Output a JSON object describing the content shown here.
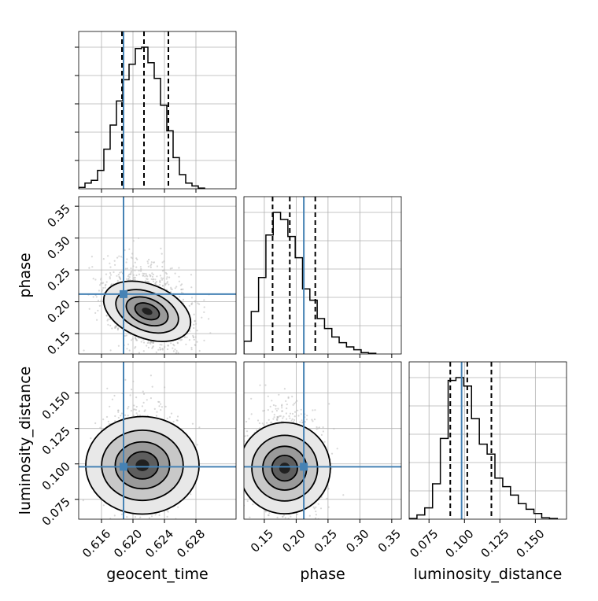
{
  "chart_data": {
    "type": "corner",
    "parameters": [
      {
        "name": "geocent_time",
        "label": "geocent_time",
        "truth": 0.6188,
        "quantiles": [
          0.6186,
          0.6214,
          0.6245
        ],
        "range": [
          0.6131,
          0.6331
        ],
        "ticks": [
          "0.616",
          "0.620",
          "0.624",
          "0.628"
        ]
      },
      {
        "name": "phase",
        "label": "phase",
        "truth": 0.212,
        "quantiles": [
          0.163,
          0.19,
          0.23
        ],
        "range": [
          0.118,
          0.365
        ],
        "ticks": [
          "0.15",
          "0.20",
          "0.25",
          "0.30",
          "0.35"
        ]
      },
      {
        "name": "luminosity_distance",
        "label": "luminosity_distance",
        "truth": 0.098,
        "quantiles": [
          0.09,
          0.102,
          0.119
        ],
        "range": [
          0.061,
          0.172
        ],
        "ticks": [
          "0.075",
          "0.100",
          "0.125",
          "0.150"
        ]
      }
    ],
    "histograms": {
      "geocent_time": {
        "edges": [
          0.6131,
          0.6139,
          0.6147,
          0.6155,
          0.6163,
          0.6171,
          0.6179,
          0.6187,
          0.6195,
          0.6203,
          0.6211,
          0.6219,
          0.6227,
          0.6235,
          0.6243,
          0.6251,
          0.6259,
          0.6267,
          0.6275,
          0.6283,
          0.6291
        ],
        "counts": [
          0.01,
          0.04,
          0.06,
          0.13,
          0.28,
          0.45,
          0.62,
          0.77,
          0.88,
          0.99,
          1.0,
          0.89,
          0.78,
          0.59,
          0.41,
          0.22,
          0.1,
          0.04,
          0.02,
          0.005
        ]
      },
      "phase": {
        "edges": [
          0.118,
          0.1295,
          0.141,
          0.1525,
          0.164,
          0.1755,
          0.187,
          0.1985,
          0.21,
          0.2215,
          0.233,
          0.2445,
          0.256,
          0.2675,
          0.279,
          0.2905,
          0.302,
          0.3135,
          0.325
        ],
        "counts": [
          0.09,
          0.3,
          0.54,
          0.84,
          1.0,
          0.95,
          0.83,
          0.68,
          0.46,
          0.38,
          0.25,
          0.18,
          0.12,
          0.08,
          0.05,
          0.03,
          0.01,
          0.005
        ]
      },
      "luminosity_distance": {
        "edges": [
          0.061,
          0.0665,
          0.072,
          0.0775,
          0.083,
          0.0885,
          0.094,
          0.0995,
          0.105,
          0.1105,
          0.116,
          0.1215,
          0.127,
          0.1325,
          0.138,
          0.1435,
          0.149,
          0.1545,
          0.16,
          0.1655
        ],
        "counts": [
          0.005,
          0.03,
          0.08,
          0.25,
          0.57,
          0.98,
          1.0,
          0.94,
          0.71,
          0.53,
          0.46,
          0.29,
          0.23,
          0.17,
          0.11,
          0.07,
          0.04,
          0.01,
          0.005
        ]
      }
    },
    "density_peaks": {
      "phase_vs_geocent_time": {
        "x": 0.6218,
        "y": 0.185
      },
      "luminosity_distance_vs_geocent_time": {
        "x": 0.6212,
        "y": 0.099
      },
      "luminosity_distance_vs_phase": {
        "x": 0.182,
        "y": 0.097
      }
    },
    "ylabel_phase": "phase",
    "ylabel_luminosity_distance": "luminosity_distance",
    "grid": true,
    "colors": {
      "truth": "#4682b4",
      "hist": "#000000",
      "samples": "#b8b8b8"
    }
  }
}
